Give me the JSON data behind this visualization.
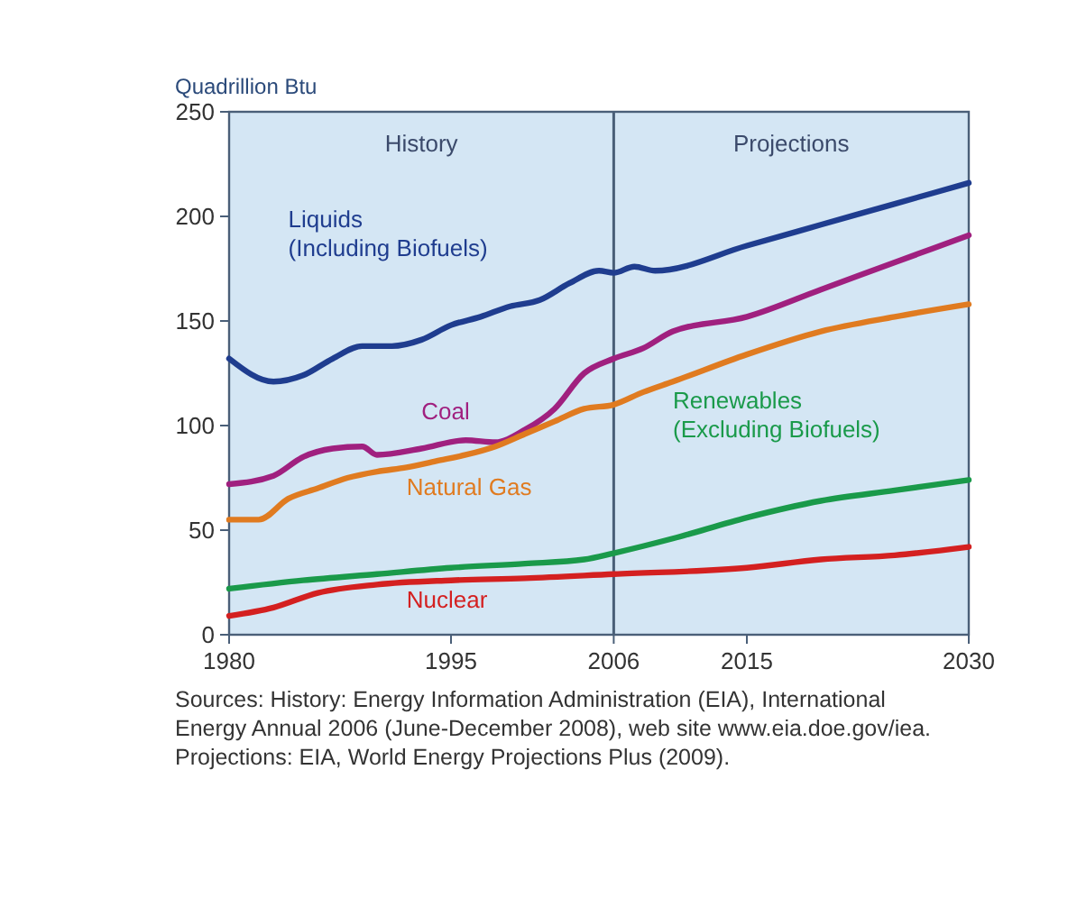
{
  "chart_data": {
    "type": "line",
    "ylabel": "Quadrillion Btu",
    "xlim": [
      1980,
      2030
    ],
    "xticks": [
      1980,
      1995,
      2006,
      2015,
      2030
    ],
    "ylim": [
      0,
      250
    ],
    "yticks": [
      0,
      50,
      100,
      150,
      200,
      250
    ],
    "grid": false,
    "bands": [
      {
        "axis": "x",
        "from": 1980,
        "to": 2006,
        "label": "History",
        "color": "#d4e6f4"
      },
      {
        "axis": "x",
        "from": 2006,
        "to": 2030,
        "label": "Projections",
        "color": "#d4e6f4"
      }
    ],
    "ref_lines": [
      {
        "axis": "x",
        "value": 2006,
        "color": "#4a5f78"
      }
    ],
    "series": [
      {
        "name": "Liquids (Including Biofuels)",
        "color": "#1f3d8f",
        "x": [
          1980,
          1983,
          1985,
          1987,
          1989,
          1991,
          1993,
          1995,
          1997,
          1999,
          2001,
          2003,
          2005,
          2006,
          2007.4,
          2008.8,
          2015,
          2020,
          2025,
          2030
        ],
        "values": [
          132,
          121,
          124,
          132,
          138,
          138,
          141,
          148,
          152,
          157,
          160,
          168,
          174,
          173,
          176,
          174,
          186,
          196,
          206,
          216
        ]
      },
      {
        "name": "Coal",
        "color": "#a0207f",
        "x": [
          1980,
          1983,
          1985,
          1987,
          1989,
          1990,
          1993,
          1996,
          1998,
          2000,
          2002,
          2004,
          2006,
          2008,
          2010,
          2015,
          2020,
          2025,
          2030
        ],
        "values": [
          72,
          76,
          85,
          89,
          90,
          86,
          89,
          93,
          92,
          98,
          108,
          125,
          132,
          137,
          145,
          152,
          165,
          178,
          191
        ]
      },
      {
        "name": "Natural Gas",
        "color": "#e07b20",
        "x": [
          1980,
          1982,
          1984,
          1986,
          1988,
          1990,
          1992,
          1994,
          1996,
          1998,
          2000,
          2002,
          2004,
          2006,
          2008,
          2010,
          2015,
          2020,
          2025,
          2030
        ],
        "values": [
          55,
          55,
          65,
          70,
          75,
          78,
          80,
          83,
          86,
          90,
          96,
          102,
          108,
          110,
          116,
          121,
          134,
          145,
          152,
          158
        ]
      },
      {
        "name": "Renewables (Excluding Biofuels)",
        "color": "#1a9a4a",
        "x": [
          1980,
          1985,
          1990,
          1995,
          2000,
          2004,
          2006,
          2010,
          2015,
          2020,
          2025,
          2030
        ],
        "values": [
          22,
          26,
          29,
          32,
          34,
          36,
          39,
          46,
          56,
          64,
          69,
          74
        ]
      },
      {
        "name": "Nuclear",
        "color": "#d42020",
        "x": [
          1980,
          1983,
          1986,
          1990,
          1995,
          2000,
          2006,
          2015,
          2020,
          2025,
          2030
        ],
        "values": [
          9,
          13,
          20,
          24,
          26,
          27,
          29,
          32,
          36,
          38,
          42
        ]
      }
    ],
    "annotations": [
      "Sources: History: Energy Information Administration (EIA), International Energy Annual 2006 (June-December 2008), web site www.eia.doe.gov/iea. Projections: EIA, World Energy Projections Plus (2009)."
    ]
  }
}
